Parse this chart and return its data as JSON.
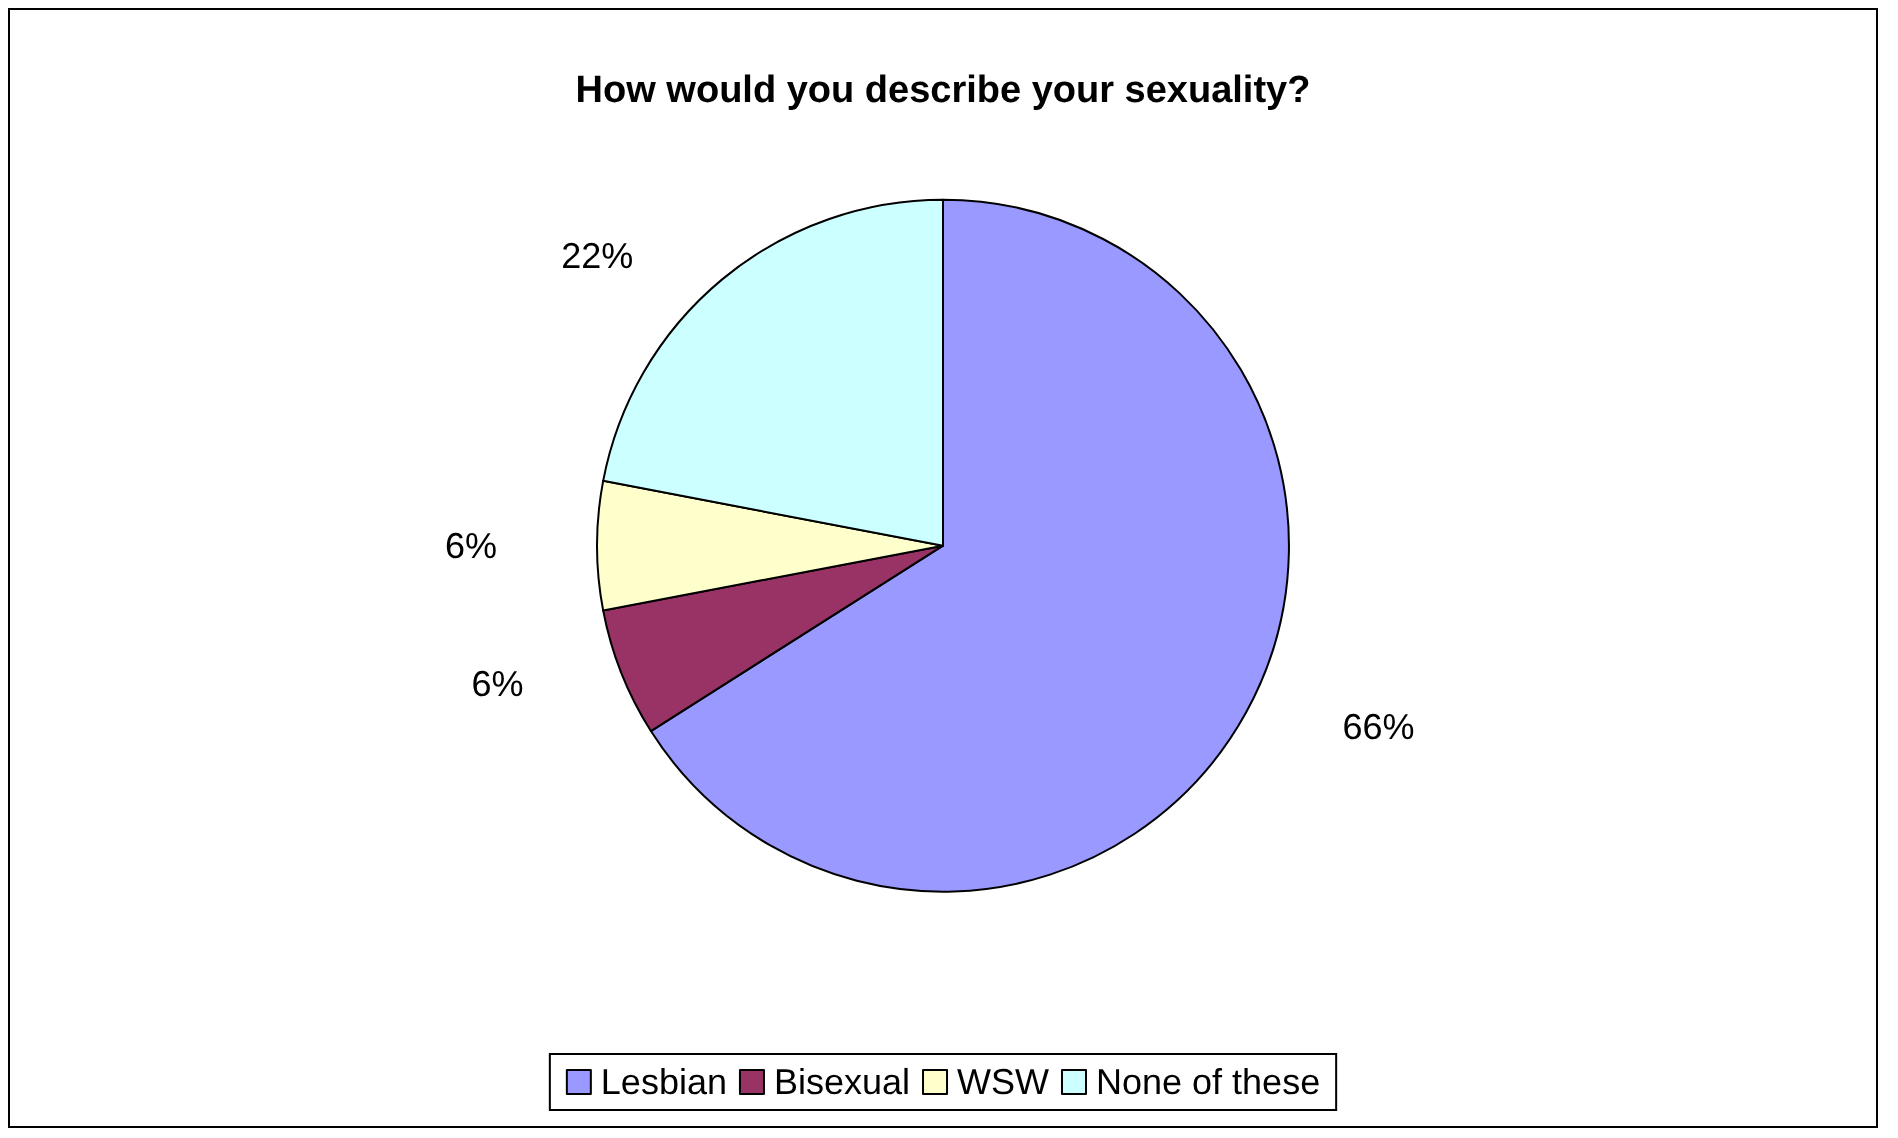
{
  "chart_data": {
    "type": "pie",
    "title": "How would you describe your sexuality?",
    "categories": [
      "Lesbian",
      "Bisexual",
      "WSW",
      "None of these"
    ],
    "values": [
      66,
      6,
      6,
      22
    ],
    "colors": [
      "#9999ff",
      "#993366",
      "#ffffcc",
      "#ccffff"
    ],
    "value_labels": [
      "66%",
      "6%",
      "6%",
      "22%"
    ],
    "legend": "bottom"
  }
}
